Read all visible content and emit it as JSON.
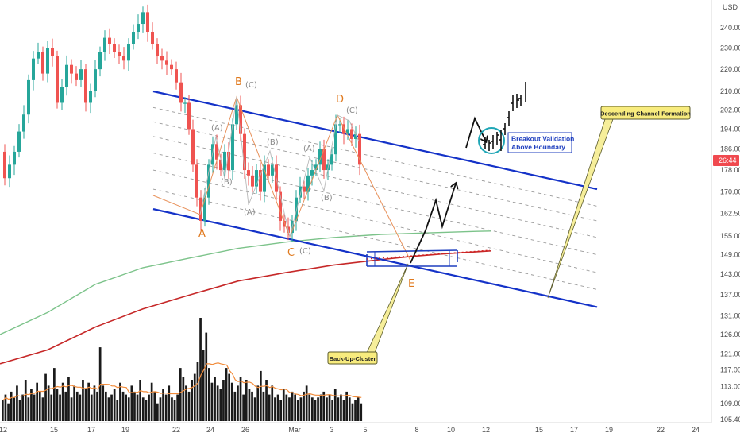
{
  "chart_data": {
    "type": "candlestick",
    "currency": "USD",
    "last_price_label": "26:44",
    "y_axis": {
      "scale": "log",
      "ylim": [
        105.4,
        250
      ],
      "ticks": [
        "240.00",
        "230.00",
        "220.00",
        "210.00",
        "202.00",
        "194.00",
        "186.00",
        "178.00",
        "170.00",
        "162.50",
        "155.00",
        "149.00",
        "143.00",
        "137.00",
        "131.00",
        "126.00",
        "121.00",
        "117.00",
        "113.00",
        "109.00",
        "105.40"
      ]
    },
    "x_axis": {
      "ticks": [
        "12",
        "15",
        "17",
        "19",
        "22",
        "24",
        "26",
        "Mar",
        "3",
        "5",
        "8",
        "10",
        "12",
        "15",
        "17",
        "19",
        "22",
        "24"
      ]
    },
    "price_series": {
      "name": "price",
      "points": [
        [
          0,
          185
        ],
        [
          6,
          175
        ],
        [
          12,
          180
        ],
        [
          18,
          185
        ],
        [
          24,
          193
        ],
        [
          30,
          200
        ],
        [
          36,
          215
        ],
        [
          42,
          225
        ],
        [
          48,
          228
        ],
        [
          54,
          218
        ],
        [
          60,
          230
        ],
        [
          66,
          226
        ],
        [
          72,
          205
        ],
        [
          78,
          212
        ],
        [
          84,
          222
        ],
        [
          90,
          218
        ],
        [
          96,
          215
        ],
        [
          102,
          220
        ],
        [
          108,
          205
        ],
        [
          114,
          210
        ],
        [
          120,
          220
        ],
        [
          126,
          228
        ],
        [
          132,
          235
        ],
        [
          138,
          232
        ],
        [
          144,
          228
        ],
        [
          150,
          226
        ],
        [
          156,
          224
        ],
        [
          162,
          232
        ],
        [
          168,
          238
        ],
        [
          174,
          242
        ],
        [
          180,
          248
        ],
        [
          186,
          238
        ],
        [
          192,
          232
        ],
        [
          198,
          226
        ],
        [
          204,
          224
        ],
        [
          210,
          222
        ],
        [
          216,
          220
        ],
        [
          222,
          214
        ],
        [
          228,
          205
        ],
        [
          233,
          205
        ],
        [
          238,
          194
        ],
        [
          243,
          180
        ],
        [
          248,
          168
        ],
        [
          253,
          160
        ],
        [
          258,
          168
        ],
        [
          263,
          180
        ],
        [
          268,
          188
        ],
        [
          273,
          182
        ],
        [
          278,
          178
        ],
        [
          283,
          185
        ],
        [
          288,
          178
        ],
        [
          293,
          196
        ],
        [
          298,
          204
        ],
        [
          303,
          192
        ],
        [
          308,
          178
        ],
        [
          313,
          176
        ],
        [
          318,
          172
        ],
        [
          323,
          178
        ],
        [
          328,
          170
        ],
        [
          333,
          180
        ],
        [
          338,
          176
        ],
        [
          343,
          180
        ],
        [
          348,
          170
        ],
        [
          353,
          160
        ],
        [
          358,
          158
        ],
        [
          363,
          156
        ],
        [
          368,
          160
        ],
        [
          373,
          168
        ],
        [
          378,
          172
        ],
        [
          383,
          170
        ],
        [
          388,
          176
        ],
        [
          393,
          178
        ],
        [
          398,
          180
        ],
        [
          403,
          186
        ],
        [
          408,
          178
        ],
        [
          413,
          180
        ],
        [
          418,
          184
        ],
        [
          423,
          196
        ],
        [
          428,
          196
        ],
        [
          433,
          192
        ],
        [
          438,
          194
        ],
        [
          443,
          190
        ],
        [
          448,
          192
        ],
        [
          453,
          180
        ]
      ]
    },
    "volume_series": {
      "name": "volume",
      "values": [
        7,
        9,
        6,
        10,
        8,
        12,
        7,
        9,
        14,
        8,
        11,
        9,
        13,
        10,
        8,
        16,
        12,
        9,
        18,
        11,
        9,
        13,
        10,
        15,
        8,
        12,
        10,
        9,
        14,
        11,
        13,
        9,
        12,
        10,
        25,
        12,
        10,
        8,
        9,
        11,
        7,
        13,
        10,
        9,
        8,
        12,
        10,
        9,
        14,
        8,
        7,
        9,
        13,
        10,
        6,
        8,
        11,
        9,
        12,
        8,
        7,
        9,
        18,
        15,
        12,
        10,
        14,
        16,
        20,
        35,
        24,
        30,
        18,
        13,
        15,
        12,
        11,
        14,
        18,
        16,
        13,
        10,
        12,
        15,
        9,
        14,
        11,
        10,
        8,
        12,
        17,
        10,
        14,
        9,
        12,
        8,
        9,
        7,
        11,
        9,
        8,
        10,
        9,
        7,
        8,
        10,
        12,
        9,
        8,
        7,
        8,
        9,
        10,
        8,
        9,
        7,
        11,
        8,
        9,
        7,
        10,
        8,
        6,
        7,
        8,
        6
      ]
    },
    "ma_green": {
      "name": "moving-average-green",
      "points": [
        [
          0,
          126
        ],
        [
          60,
          132
        ],
        [
          120,
          140
        ],
        [
          180,
          145
        ],
        [
          240,
          148
        ],
        [
          300,
          151
        ],
        [
          360,
          153
        ],
        [
          420,
          154.5
        ],
        [
          480,
          155.5
        ],
        [
          540,
          156
        ],
        [
          600,
          156.5
        ],
        [
          618,
          156.6
        ]
      ]
    },
    "ma_red": {
      "name": "moving-average-red",
      "points": [
        [
          0,
          118.5
        ],
        [
          60,
          122
        ],
        [
          120,
          128
        ],
        [
          180,
          133
        ],
        [
          240,
          137
        ],
        [
          300,
          141
        ],
        [
          360,
          143.5
        ],
        [
          420,
          145.8
        ],
        [
          480,
          147.5
        ],
        [
          520,
          148.5
        ],
        [
          560,
          149.3
        ],
        [
          618,
          150.2
        ]
      ]
    },
    "channel": {
      "upper": [
        [
          193,
          210
        ],
        [
          752,
          171
        ]
      ],
      "lower": [
        [
          193,
          164
        ],
        [
          752,
          133.5
        ]
      ],
      "midlines": [
        [
          [
            193,
            203
          ],
          [
            752,
            165
          ]
        ],
        [
          [
            193,
            197
          ],
          [
            752,
            160
          ]
        ],
        [
          [
            193,
            191
          ],
          [
            752,
            154.5
          ]
        ],
        [
          [
            193,
            184.5
          ],
          [
            752,
            149
          ]
        ],
        [
          [
            193,
            178
          ],
          [
            752,
            143.5
          ]
        ],
        [
          [
            193,
            171
          ],
          [
            752,
            138.5
          ]
        ]
      ]
    },
    "wave_labels": [
      "A",
      "B",
      "C",
      "D",
      "E"
    ],
    "sub_wave_labels": [
      "(A)",
      "(B)",
      "(C)",
      "(A)",
      "(B)",
      "(C)",
      "(A)",
      "(B)",
      "(C)",
      "(A)",
      "(B)",
      "(C)"
    ],
    "annotations": {
      "breakout_line1": "Breakout Validation",
      "breakout_line2": "Above Boundary",
      "channel_label": "Descending-Channel-Formation",
      "cluster_label": "Back-Up-Cluster"
    }
  }
}
